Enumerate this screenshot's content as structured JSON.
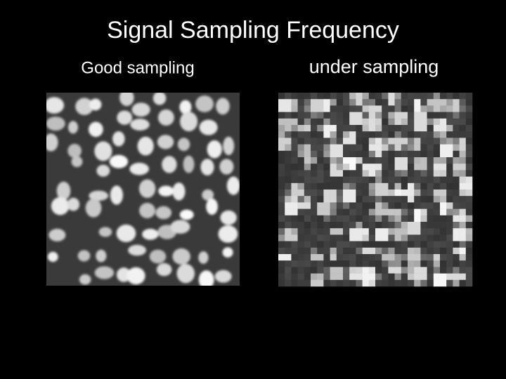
{
  "title": "Signal Sampling Frequency",
  "panels": [
    {
      "label": "Good sampling"
    },
    {
      "label": "under sampling"
    }
  ]
}
